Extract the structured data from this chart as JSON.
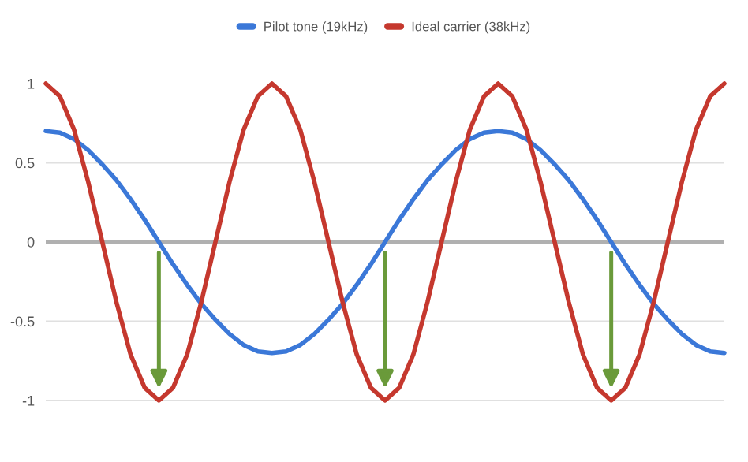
{
  "chart_data": {
    "type": "line",
    "categories": [
      null,
      null,
      null,
      null,
      null,
      null,
      null,
      null,
      null,
      null,
      null,
      null,
      null,
      null,
      null,
      null,
      null,
      null,
      null,
      null,
      null,
      null,
      null,
      null,
      null,
      null,
      null,
      null,
      null,
      null,
      null,
      null,
      null,
      null,
      null,
      null,
      null,
      null,
      null,
      null,
      null,
      null,
      null,
      null,
      null,
      null,
      null,
      null,
      null
    ],
    "series": [
      {
        "name": "Pilot tone (19kHz)",
        "color": "#3b78d8",
        "values": [
          0.7,
          0.69,
          0.65,
          0.58,
          0.49,
          0.39,
          0.27,
          0.14,
          0,
          -0.14,
          -0.27,
          -0.39,
          -0.49,
          -0.58,
          -0.65,
          -0.69,
          -0.7,
          -0.69,
          -0.65,
          -0.58,
          -0.49,
          -0.39,
          -0.27,
          -0.14,
          0,
          0.14,
          0.27,
          0.39,
          0.49,
          0.58,
          0.65,
          0.69,
          0.7,
          0.69,
          0.65,
          0.58,
          0.49,
          0.39,
          0.27,
          0.14,
          0,
          -0.14,
          -0.27,
          -0.39,
          -0.49,
          -0.58,
          -0.65,
          -0.69,
          -0.7
        ]
      },
      {
        "name": "Ideal carrier (38kHz)",
        "color": "#c5382e",
        "values": [
          1,
          0.92,
          0.71,
          0.38,
          0,
          -0.38,
          -0.71,
          -0.92,
          -1,
          -0.92,
          -0.71,
          -0.38,
          0,
          0.38,
          0.71,
          0.92,
          1,
          0.92,
          0.71,
          0.38,
          0,
          -0.38,
          -0.71,
          -0.92,
          -1,
          -0.92,
          -0.71,
          -0.38,
          0,
          0.38,
          0.71,
          0.92,
          1,
          0.92,
          0.71,
          0.38,
          0,
          -0.38,
          -0.71,
          -0.92,
          -1,
          -0.92,
          -0.71,
          -0.38,
          0,
          0.38,
          0.71,
          0.92,
          1
        ]
      }
    ],
    "ylim": [
      -1,
      1
    ],
    "yticks": [
      -1,
      -0.5,
      0,
      0.5,
      1
    ],
    "grid": "y",
    "legend": "top",
    "tick_labels": "y"
  }
}
